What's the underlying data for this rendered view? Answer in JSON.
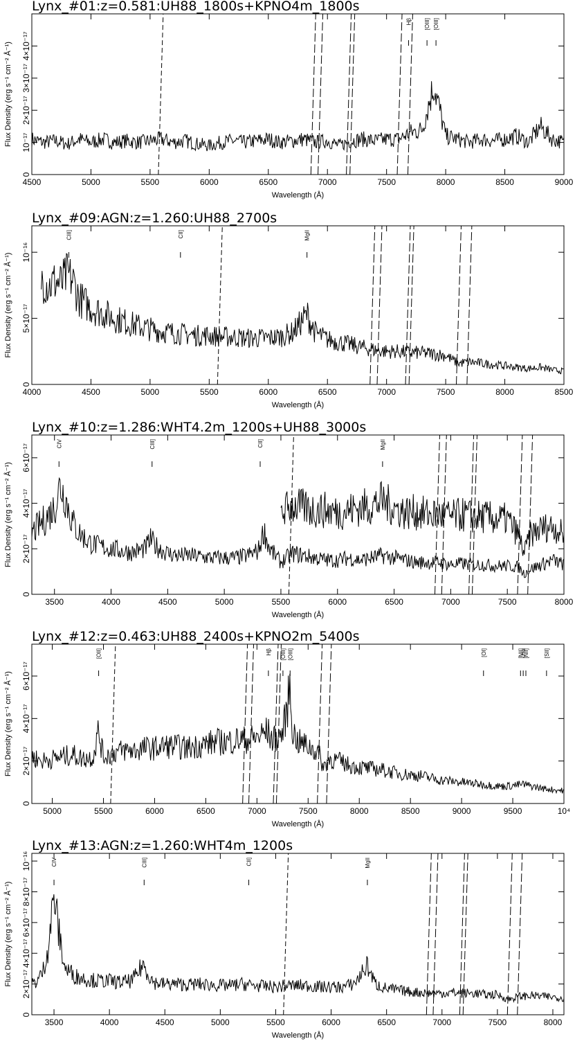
{
  "chart_data": [
    {
      "type": "line",
      "title": "Lynx_#01:z=0.581:UH88_1800s+KPNO4m_1800s",
      "xlabel": "Wavelength (Å)",
      "ylabel": "Flux Density (erg s⁻¹ cm⁻² Å⁻¹)",
      "xlim": [
        4500,
        9000
      ],
      "ylim": [
        0,
        5e-17
      ],
      "xticks": [
        4500,
        5000,
        5500,
        6000,
        6500,
        7000,
        7500,
        8000,
        8500,
        9000
      ],
      "xtick_labels": [
        "4500",
        "5000",
        "5500",
        "6000",
        "6500",
        "7000",
        "7500",
        "8000",
        "8500",
        "9000"
      ],
      "yticks": [
        0,
        1e-17,
        2e-17,
        3e-17,
        4e-17
      ],
      "ytick_labels": [
        "0",
        "10⁻¹⁷",
        "2×10⁻¹⁷",
        "3×10⁻¹⁷",
        "4×10⁻¹⁷"
      ],
      "telluric_bands": [
        [
          5570,
          5582
        ],
        [
          6860,
          6920
        ],
        [
          7160,
          7190
        ],
        [
          7590,
          7680
        ]
      ],
      "emission_lines": [
        {
          "label": "Hβ",
          "wavelength": 7686
        },
        {
          "label": "[OIII]",
          "wavelength": 7842
        },
        {
          "label": "[OIII]",
          "wavelength": 7918
        }
      ],
      "series": [
        {
          "x": [
            4500,
            4600,
            4700,
            4800,
            4900,
            5000,
            5100,
            5200,
            5300,
            5400,
            5500,
            5600,
            5700,
            5800,
            5900,
            6000,
            6100,
            6200,
            6300,
            6400,
            6500,
            6600,
            6700,
            6800,
            6900,
            7000,
            7100,
            7200,
            7300,
            7400,
            7500,
            7600,
            7700,
            7800,
            7900,
            8000,
            8100,
            8200,
            8300,
            8400,
            8500,
            8600,
            8700,
            8800,
            8900,
            9000
          ],
          "y": [
            1.1e-17,
            1e-17,
            1.05e-17,
            9.5e-18,
            1.1e-17,
            1e-17,
            1.1e-17,
            1e-17,
            1.05e-17,
            1e-17,
            1.05e-17,
            1.1e-17,
            1e-17,
            1.05e-17,
            9.5e-18,
            9e-18,
            1e-17,
            1.05e-17,
            1e-17,
            1.05e-17,
            1.1e-17,
            1e-17,
            1.05e-17,
            1.1e-17,
            1e-17,
            1.05e-17,
            9e-18,
            1.05e-17,
            1.1e-17,
            1.05e-17,
            1.1e-17,
            1.1e-17,
            1.3e-17,
            1.4e-17,
            2.8e-17,
            1.2e-17,
            1.1e-17,
            1e-17,
            1.1e-17,
            1.05e-17,
            1.1e-17,
            1.2e-17,
            1e-17,
            1.5e-17,
            1.1e-17,
            1e-17
          ]
        }
      ]
    },
    {
      "type": "line",
      "title": "Lynx_#09:AGN:z=1.260:UH88_2700s",
      "xlabel": "Wavelength (Å)",
      "ylabel": "Flux Density (erg s⁻¹ cm⁻² Å⁻¹)",
      "xlim": [
        4000,
        8500
      ],
      "ylim": [
        0,
        1.2e-16
      ],
      "xticks": [
        4000,
        4500,
        5000,
        5500,
        6000,
        6500,
        7000,
        7500,
        8000,
        8500
      ],
      "xtick_labels": [
        "4000",
        "4500",
        "5000",
        "5500",
        "6000",
        "6500",
        "7000",
        "7500",
        "8000",
        "8500"
      ],
      "yticks": [
        0,
        5e-17,
        1e-16
      ],
      "ytick_labels": [
        "0",
        "5×10⁻¹⁷",
        "10⁻¹⁶"
      ],
      "telluric_bands": [
        [
          5570,
          5582
        ],
        [
          6860,
          6920
        ],
        [
          7160,
          7190
        ],
        [
          7590,
          7680
        ]
      ],
      "emission_lines": [
        {
          "label": "CIII]",
          "wavelength": 4313
        },
        {
          "label": "CII]",
          "wavelength": 5257
        },
        {
          "label": "MgII",
          "wavelength": 6327
        }
      ],
      "series": [
        {
          "x": [
            4080,
            4150,
            4200,
            4250,
            4300,
            4350,
            4400,
            4500,
            4600,
            4700,
            4800,
            4900,
            5000,
            5100,
            5200,
            5300,
            5400,
            5500,
            5600,
            5700,
            5800,
            5900,
            6000,
            6100,
            6200,
            6250,
            6300,
            6330,
            6360,
            6400,
            6500,
            6600,
            6700,
            6800,
            6900,
            7000,
            7100,
            7200,
            7300,
            7400,
            7500,
            7600,
            7700,
            7800,
            7900,
            8000,
            8100,
            8200,
            8300,
            8400,
            8500
          ],
          "y": [
            8e-17,
            7.5e-17,
            7.8e-17,
            7.6e-17,
            8.3e-17,
            7.8e-17,
            6.5e-17,
            5.8e-17,
            5.4e-17,
            5e-17,
            4.7e-17,
            4.4e-17,
            4.2e-17,
            4e-17,
            3.9e-17,
            3.8e-17,
            3.7e-17,
            3.7e-17,
            3.6e-17,
            3.6e-17,
            3.5e-17,
            3.5e-17,
            3.5e-17,
            3.6e-17,
            3.9e-17,
            4.4e-17,
            5e-17,
            5.3e-17,
            4.6e-17,
            3.9e-17,
            3.4e-17,
            3.2e-17,
            3e-17,
            2.8e-17,
            2.6e-17,
            2.5e-17,
            2.5e-17,
            2.4e-17,
            2.4e-17,
            2.3e-17,
            2.2e-17,
            1.6e-17,
            1.7e-17,
            1.6e-17,
            1.5e-17,
            1.4e-17,
            1.3e-17,
            1.2e-17,
            1.3e-17,
            1.1e-17,
            1e-17
          ]
        }
      ]
    },
    {
      "type": "line",
      "title": "Lynx_#10:z=1.286:WHT4.2m_1200s+UH88_3000s",
      "xlabel": "Wavelength (Å)",
      "ylabel": "Flux Density (erg s⁻¹ cm⁻² Å⁻¹)",
      "xlim": [
        3300,
        8000
      ],
      "ylim": [
        0,
        7e-17
      ],
      "xticks": [
        3500,
        4000,
        4500,
        5000,
        5500,
        6000,
        6500,
        7000,
        7500,
        8000
      ],
      "xtick_labels": [
        "3500",
        "4000",
        "4500",
        "5000",
        "5500",
        "6000",
        "6500",
        "7000",
        "7500",
        "8000"
      ],
      "yticks": [
        0,
        2e-17,
        4e-17,
        6e-17
      ],
      "ytick_labels": [
        "0",
        "2×10⁻¹⁷",
        "4×10⁻¹⁷",
        "6×10⁻¹⁷"
      ],
      "telluric_bands": [
        [
          5570,
          5582
        ],
        [
          6860,
          6920
        ],
        [
          7160,
          7190
        ],
        [
          7590,
          7680
        ]
      ],
      "emission_lines": [
        {
          "label": "CIV",
          "wavelength": 3540
        },
        {
          "label": "CIII]",
          "wavelength": 4362
        },
        {
          "label": "CII]",
          "wavelength": 5317
        },
        {
          "label": "MgII",
          "wavelength": 6398
        }
      ],
      "series": [
        {
          "x": [
            3300,
            3400,
            3500,
            3550,
            3600,
            3650,
            3700,
            3800,
            3900,
            4000,
            4100,
            4200,
            4300,
            4350,
            4400,
            4500,
            4600,
            4700,
            4800,
            4900,
            5000,
            5100,
            5200,
            5300,
            5350,
            5400,
            5500,
            5600,
            5700,
            5800,
            5900,
            6000,
            6100,
            6200,
            6300,
            6400,
            6500,
            6600,
            6700,
            6800,
            6900,
            7000,
            7100,
            7200,
            7300,
            7400,
            7500,
            7600,
            7650,
            7700,
            7800,
            7900,
            8000
          ],
          "y": [
            2.7e-17,
            3.2e-17,
            3.8e-17,
            4.8e-17,
            4.2e-17,
            3.3e-17,
            2.8e-17,
            2.3e-17,
            2.1e-17,
            2e-17,
            1.9e-17,
            1.85e-17,
            2e-17,
            2.4e-17,
            2.1e-17,
            1.8e-17,
            1.7e-17,
            1.7e-17,
            1.65e-17,
            1.6e-17,
            1.6e-17,
            1.6e-17,
            1.7e-17,
            1.9e-17,
            2.8e-17,
            2e-17,
            1.4e-17,
            1.8e-17,
            1.7e-17,
            1.6e-17,
            1.5e-17,
            1.5e-17,
            1.6e-17,
            1.5e-17,
            1.6e-17,
            1.7e-17,
            1.6e-17,
            1.5e-17,
            1.4e-17,
            1.4e-17,
            1.4e-17,
            1.3e-17,
            1.35e-17,
            1.3e-17,
            1.3e-17,
            1.25e-17,
            1.25e-17,
            1.2e-17,
            9e-18,
            1.1e-17,
            1.3e-17,
            1.5e-17,
            1.3e-17
          ]
        },
        {
          "x": [
            5500,
            5600,
            5700,
            5800,
            5900,
            6000,
            6100,
            6200,
            6300,
            6400,
            6500,
            6600,
            6700,
            6800,
            6900,
            7000,
            7100,
            7200,
            7300,
            7400,
            7500,
            7600,
            7650,
            7700,
            7800,
            7900,
            8000
          ],
          "y": [
            3.6e-17,
            3.9e-17,
            3.8e-17,
            3.7e-17,
            3.7e-17,
            3.6e-17,
            3.7e-17,
            3.8e-17,
            3.9e-17,
            4.1e-17,
            3.8e-17,
            3.6e-17,
            3.6e-17,
            3.5e-17,
            3.5e-17,
            3.4e-17,
            3.5e-17,
            3.4e-17,
            3.4e-17,
            3.3e-17,
            3.3e-17,
            2.6e-17,
            1.8e-17,
            2.6e-17,
            2.9e-17,
            3e-17,
            2.6e-17
          ]
        }
      ]
    },
    {
      "type": "line",
      "title": "Lynx_#12:z=0.463:UH88_2400s+KPNO2m_5400s",
      "xlabel": "Wavelength (Å)",
      "ylabel": "Flux Density (erg s⁻¹ cm⁻² Å⁻¹)",
      "xlim": [
        4800,
        10000
      ],
      "ylim": [
        0,
        7.5e-17
      ],
      "xticks": [
        5000,
        5500,
        6000,
        6500,
        7000,
        7500,
        8000,
        8500,
        9000,
        9500,
        10000
      ],
      "xtick_labels": [
        "5000",
        "5500",
        "6000",
        "6500",
        "7000",
        "7500",
        "8000",
        "8500",
        "9000",
        "9500",
        "10⁴"
      ],
      "yticks": [
        0,
        2e-17,
        4e-17,
        6e-17
      ],
      "ytick_labels": [
        "0",
        "2×10⁻¹⁷",
        "4×10⁻¹⁷",
        "6×10⁻¹⁷"
      ],
      "telluric_bands": [
        [
          5570,
          5582
        ],
        [
          6860,
          6920
        ],
        [
          7160,
          7190
        ],
        [
          7590,
          7680
        ]
      ],
      "emission_lines": [
        {
          "label": "[OII]",
          "wavelength": 5453
        },
        {
          "label": "Hβ",
          "wavelength": 7112
        },
        {
          "label": "[OIII]",
          "wavelength": 7254
        },
        {
          "label": "[OIII]",
          "wavelength": 7324
        },
        {
          "label": "[OI]",
          "wavelength": 9214
        },
        {
          "label": "[NII]",
          "wavelength": 9576
        },
        {
          "label": "Hα",
          "wavelength": 9602
        },
        {
          "label": "[NII]",
          "wavelength": 9628
        },
        {
          "label": "[SII]",
          "wavelength": 9830
        }
      ],
      "series": [
        {
          "x": [
            4800,
            4900,
            5000,
            5100,
            5200,
            5300,
            5400,
            5450,
            5500,
            5600,
            5700,
            5800,
            5900,
            6000,
            6100,
            6200,
            6300,
            6400,
            6500,
            6600,
            6700,
            6800,
            6900,
            7000,
            7100,
            7150,
            7200,
            7250,
            7300,
            7320,
            7350,
            7400,
            7500,
            7600,
            7650,
            7700,
            7800,
            7900,
            8000,
            8200,
            8400,
            8600,
            8800,
            9000,
            9200,
            9400,
            9600,
            9800,
            10000
          ],
          "y": [
            2.2e-17,
            2e-17,
            2.1e-17,
            2.2e-17,
            2.3e-17,
            2.1e-17,
            2.2e-17,
            3.4e-17,
            2.2e-17,
            2.4e-17,
            2.5e-17,
            2.5e-17,
            2.6e-17,
            2.6e-17,
            2.7e-17,
            2.7e-17,
            2.6e-17,
            2.7e-17,
            2.8e-17,
            2.9e-17,
            2.9e-17,
            3e-17,
            3e-17,
            3.1e-17,
            3.4e-17,
            3e-17,
            3.1e-17,
            3.3e-17,
            4.6e-17,
            5.6e-17,
            3.4e-17,
            2.9e-17,
            2.7e-17,
            2.4e-17,
            1.7e-17,
            2.1e-17,
            2e-17,
            1.8e-17,
            1.7e-17,
            1.6e-17,
            1.4e-17,
            1.3e-17,
            1.1e-17,
            1e-17,
            9e-18,
            8e-18,
            9e-18,
            7e-18,
            6e-18
          ]
        }
      ]
    },
    {
      "type": "line",
      "title": "Lynx_#13:AGN:z=1.260:WHT4m_1200s",
      "xlabel": "Wavelength (Å)",
      "ylabel": "Flux Density (erg s⁻¹ cm⁻² Å⁻¹)",
      "xlim": [
        3300,
        8100
      ],
      "ylim": [
        0,
        1.05e-16
      ],
      "xticks": [
        3500,
        4000,
        4500,
        5000,
        5500,
        6000,
        6500,
        7000,
        7500,
        8000
      ],
      "xtick_labels": [
        "3500",
        "4000",
        "4500",
        "5000",
        "5500",
        "6000",
        "6500",
        "7000",
        "7500",
        "8000"
      ],
      "yticks": [
        0,
        2e-17,
        4e-17,
        6e-17,
        8e-17,
        1e-16
      ],
      "ytick_labels": [
        "0",
        "2×10⁻¹⁷",
        "4×10⁻¹⁷",
        "6×10⁻¹⁷",
        "8×10⁻¹⁷",
        "10⁻¹⁶"
      ],
      "telluric_bands": [
        [
          5570,
          5582
        ],
        [
          6860,
          6920
        ],
        [
          7160,
          7190
        ],
        [
          7590,
          7680
        ]
      ],
      "emission_lines": [
        {
          "label": "CIV",
          "wavelength": 3500
        },
        {
          "label": "CIII]",
          "wavelength": 4313
        },
        {
          "label": "CII]",
          "wavelength": 5257
        },
        {
          "label": "MgII",
          "wavelength": 6327
        }
      ],
      "series": [
        {
          "x": [
            3300,
            3350,
            3400,
            3450,
            3500,
            3550,
            3600,
            3700,
            3800,
            3900,
            4000,
            4100,
            4200,
            4250,
            4300,
            4350,
            4400,
            4500,
            4600,
            4700,
            4800,
            4900,
            5000,
            5100,
            5200,
            5300,
            5400,
            5500,
            5600,
            5700,
            5800,
            5900,
            6000,
            6100,
            6200,
            6250,
            6300,
            6330,
            6360,
            6400,
            6500,
            6600,
            6700,
            6800,
            6900,
            7000,
            7100,
            7200,
            7300,
            7400,
            7500,
            7600,
            7650,
            7700,
            7800,
            7900,
            8000,
            8100
          ],
          "y": [
            2e-17,
            2.2e-17,
            2.8e-17,
            4.5e-17,
            7.8e-17,
            5e-17,
            3e-17,
            2.5e-17,
            2.3e-17,
            2.2e-17,
            2.2e-17,
            2.1e-17,
            2.2e-17,
            2.6e-17,
            3.3e-17,
            2.7e-17,
            2.1e-17,
            2e-17,
            2e-17,
            1.95e-17,
            2e-17,
            1.95e-17,
            1.9e-17,
            1.9e-17,
            2e-17,
            1.9e-17,
            1.85e-17,
            1.8e-17,
            1.9e-17,
            1.9e-17,
            1.9e-17,
            1.8e-17,
            1.8e-17,
            1.8e-17,
            2e-17,
            2.4e-17,
            3e-17,
            3.2e-17,
            2.6e-17,
            2e-17,
            1.7e-17,
            1.6e-17,
            1.5e-17,
            1.45e-17,
            1.4e-17,
            1.4e-17,
            1.45e-17,
            1.4e-17,
            1.4e-17,
            1.3e-17,
            1.3e-17,
            1e-17,
            1.1e-17,
            1.2e-17,
            1.25e-17,
            1.2e-17,
            1.15e-17,
            1.1e-17
          ]
        }
      ]
    }
  ]
}
